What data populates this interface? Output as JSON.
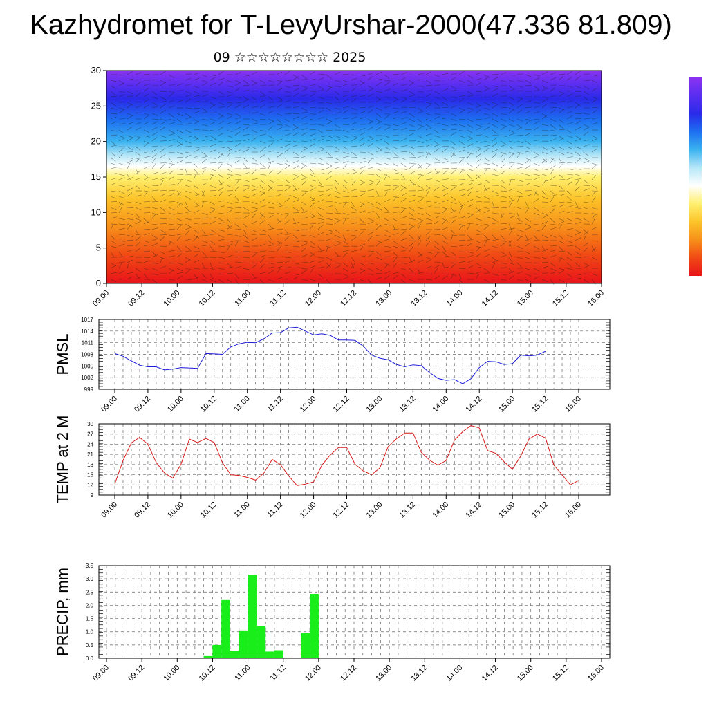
{
  "title": "Kazhydromet for T-LevyUrshar-2000(47.336 81.809)",
  "subtitle": "09 ☆☆☆☆☆☆☆☆ 2025",
  "time_ticks": [
    "09.00",
    "09.12",
    "10.00",
    "10.12",
    "11.00",
    "11.12",
    "12.00",
    "12.12",
    "13.00",
    "13.12",
    "14.00",
    "14.12",
    "15.00",
    "15.12",
    "16.00"
  ],
  "colorbar": {
    "stops": [
      "#e8131a",
      "#f04a14",
      "#f7901a",
      "#fcc42a",
      "#fff070",
      "#ffffff",
      "#b7e7f7",
      "#3ab3f0",
      "#1d6ff0",
      "#2a2ae8",
      "#5a2ef0",
      "#8a33f0"
    ]
  },
  "chart_data": [
    {
      "type": "heatmap",
      "name": "vertical-cross-section",
      "ylim": [
        0,
        30
      ],
      "yticks": [
        0,
        5,
        10,
        15,
        20,
        25,
        30
      ],
      "xticks": [
        "09.00",
        "09.12",
        "10.00",
        "10.12",
        "11.00",
        "11.12",
        "12.00",
        "12.12",
        "13.00",
        "13.12",
        "14.00",
        "14.12",
        "15.00",
        "15.12",
        "16.00"
      ],
      "color_by_level": [
        {
          "y": 0,
          "color": "#e8131a"
        },
        {
          "y": 4,
          "color": "#f04a14"
        },
        {
          "y": 8,
          "color": "#f7901a"
        },
        {
          "y": 12,
          "color": "#fcc42a"
        },
        {
          "y": 15,
          "color": "#fff070"
        },
        {
          "y": 16.5,
          "color": "#ffffff"
        },
        {
          "y": 18,
          "color": "#b7e7f7"
        },
        {
          "y": 20,
          "color": "#3ab3f0"
        },
        {
          "y": 23,
          "color": "#1d6ff0"
        },
        {
          "y": 26,
          "color": "#2a2ae8"
        },
        {
          "y": 28,
          "color": "#5a2ef0"
        },
        {
          "y": 31,
          "color": "#8a33f0"
        }
      ]
    },
    {
      "type": "line",
      "name": "pmsl",
      "ylabel": "PMSL",
      "ylim": [
        999,
        1017
      ],
      "yticks": [
        999,
        1002,
        1005,
        1008,
        1011,
        1014,
        1017
      ],
      "x_unit": "hours from 09.00, 3-hourly",
      "color": "#1a1ad8",
      "values": [
        1008.2,
        1007.5,
        1006.3,
        1005.2,
        1004.8,
        1004.8,
        1004.0,
        1004.2,
        1004.6,
        1004.5,
        1004.4,
        1008.2,
        1008.1,
        1008.0,
        1009.9,
        1010.7,
        1011.1,
        1011.0,
        1012.0,
        1013.5,
        1013.6,
        1014.8,
        1015.0,
        1014.0,
        1013.0,
        1013.3,
        1012.9,
        1011.7,
        1011.7,
        1011.6,
        1010.1,
        1007.8,
        1007.0,
        1006.6,
        1005.4,
        1004.8,
        1005.3,
        1005.1,
        1003.3,
        1001.8,
        1001.3,
        1001.5,
        1000.4,
        1001.7,
        1004.6,
        1006.2,
        1006.1,
        1005.4,
        1005.6,
        1007.8,
        1007.6,
        1007.8,
        1008.8
      ]
    },
    {
      "type": "line",
      "name": "temp-2m",
      "ylabel": "TEMP at 2 M",
      "ylim": [
        9,
        30
      ],
      "yticks": [
        9,
        12,
        15,
        18,
        21,
        24,
        27,
        30
      ],
      "x_unit": "hours from 09.00, 3-hourly",
      "color": "#d81a1a",
      "values": [
        12.3,
        19.2,
        24.4,
        26.0,
        24.0,
        18.6,
        15.5,
        14.0,
        18.1,
        25.5,
        24.5,
        25.7,
        24.5,
        18.5,
        15.0,
        14.8,
        14.2,
        13.4,
        15.5,
        19.5,
        18.0,
        14.6,
        11.8,
        12.2,
        12.9,
        17.8,
        20.8,
        23.0,
        23.0,
        18.1,
        16.1,
        15.0,
        17.0,
        23.3,
        25.6,
        27.3,
        27.3,
        21.6,
        19.3,
        17.8,
        19.2,
        25.2,
        27.7,
        29.5,
        28.8,
        22.1,
        21.3,
        18.8,
        16.6,
        20.5,
        25.5,
        27.0,
        25.8,
        17.8,
        15.0,
        12.0,
        13.3
      ]
    },
    {
      "type": "bar",
      "name": "precip",
      "ylabel": "PRECIP, mm",
      "ylim": [
        0,
        3.5
      ],
      "yticks": [
        "0.0",
        "0.5",
        "1.0",
        "1.5",
        "2.0",
        "2.5",
        "3.0",
        "3.5"
      ],
      "x_unit": "hours from 09.00, 3-hourly",
      "color": "#1aee1a",
      "values": [
        0,
        0,
        0,
        0,
        0,
        0,
        0,
        0,
        0,
        0,
        0,
        0.08,
        0.5,
        2.2,
        0.28,
        1.05,
        3.15,
        1.22,
        0.25,
        0.3,
        0.02,
        0,
        0.95,
        2.43,
        0,
        0,
        0,
        0,
        0,
        0,
        0,
        0,
        0,
        0,
        0,
        0,
        0,
        0,
        0,
        0,
        0,
        0,
        0,
        0,
        0,
        0,
        0,
        0,
        0,
        0,
        0,
        0,
        0,
        0,
        0,
        0,
        0
      ]
    }
  ]
}
